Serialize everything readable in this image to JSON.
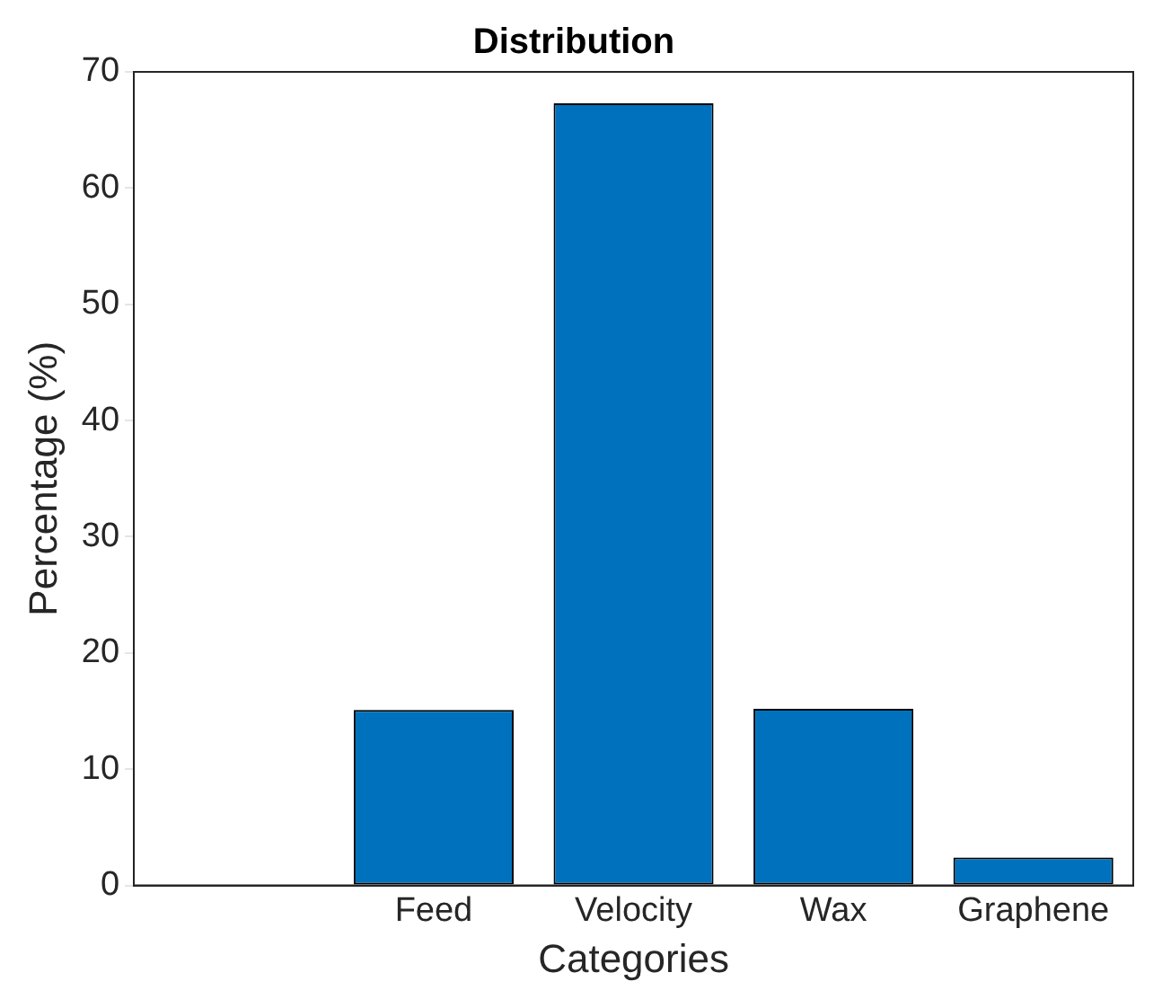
{
  "chart_data": {
    "type": "bar",
    "title": "Distribution",
    "xlabel": "Categories",
    "ylabel": "Percentage (%)",
    "categories": [
      null,
      "Feed",
      "Velocity",
      "Wax",
      "Graphene"
    ],
    "values": [
      null,
      15.1,
      67.3,
      15.2,
      2.4
    ],
    "color": "#0072bd",
    "ylim": [
      0,
      70
    ],
    "yticks": [
      0,
      10,
      20,
      30,
      40,
      50,
      60,
      70
    ],
    "grid": false,
    "legend": false
  }
}
